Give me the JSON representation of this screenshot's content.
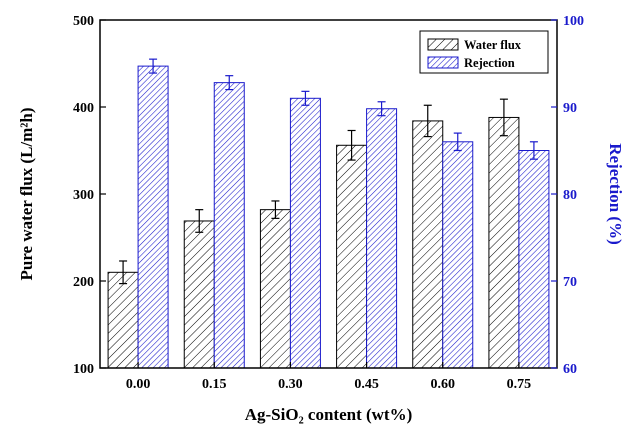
{
  "chart_data": {
    "type": "bar",
    "categories": [
      "0.00",
      "0.15",
      "0.30",
      "0.45",
      "0.60",
      "0.75"
    ],
    "series": [
      {
        "name": "Water flux",
        "axis": "left",
        "color": "#000000",
        "values": [
          210,
          269,
          282,
          356,
          384,
          388
        ],
        "errors": [
          13,
          13,
          10,
          17,
          18,
          21
        ]
      },
      {
        "name": "Rejection",
        "axis": "right",
        "color": "#1a1acc",
        "values": [
          94.7,
          92.8,
          91.0,
          89.8,
          86.0,
          85.0
        ],
        "errors": [
          0.8,
          0.8,
          0.8,
          0.8,
          1.0,
          1.0
        ]
      }
    ],
    "xlabel": "Ag-SiO₂ content (wt%)",
    "ylabel_left": "Pure water flux (L/m²h)",
    "ylabel_right": "Rejection (%)",
    "ylim_left": [
      100,
      500
    ],
    "yticks_left": [
      "100",
      "200",
      "300",
      "400",
      "500"
    ],
    "ylim_right": [
      60,
      100
    ],
    "yticks_right": [
      "60",
      "70",
      "80",
      "90",
      "100"
    ],
    "legend_position": "top-right",
    "grid": false,
    "pattern": "diagonal-hatch"
  }
}
